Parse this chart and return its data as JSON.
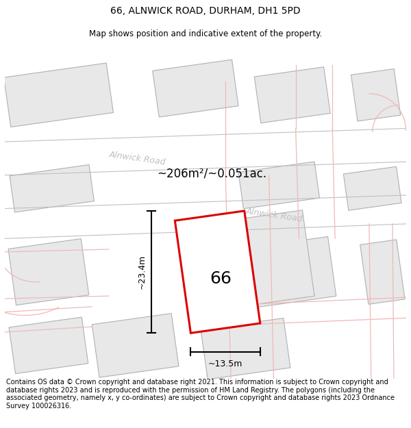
{
  "title_line1": "66, ALNWICK ROAD, DURHAM, DH1 5PD",
  "title_line2": "Map shows position and indicative extent of the property.",
  "footer_text": "Contains OS data © Crown copyright and database right 2021. This information is subject to Crown copyright and database rights 2023 and is reproduced with the permission of HM Land Registry. The polygons (including the associated geometry, namely x, y co-ordinates) are subject to Crown copyright and database rights 2023 Ordnance Survey 100026316.",
  "area_label": "~206m²/~0.051ac.",
  "width_label": "~13.5m",
  "height_label": "~23.4m",
  "property_number": "66",
  "map_bg": "#ffffff",
  "building_fill": "#e8e8e8",
  "building_edge": "#b0b0b0",
  "road_line_color": "#f0b8b8",
  "road_label_color": "#c0c0c0",
  "property_fill": "#ffffff",
  "property_edge": "#dd0000",
  "dim_color": "#111111",
  "title_fontsize": 10,
  "subtitle_fontsize": 8.5,
  "footer_fontsize": 7.0,
  "road_lw": 0.9,
  "building_lw": 0.8
}
